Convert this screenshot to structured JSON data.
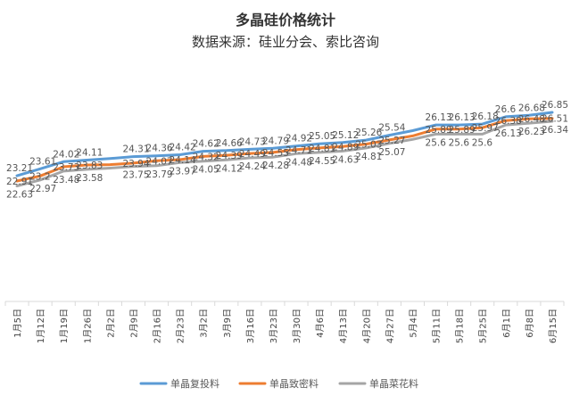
{
  "chart_data": {
    "type": "line",
    "title": "多晶硅价格统计",
    "subtitle": "数据来源：硅业分会、索比咨询",
    "categories": [
      "1月5日",
      "1月12日",
      "1月19日",
      "1月26日",
      "2月2日",
      "2月9日",
      "2月16日",
      "2月23日",
      "3月2日",
      "3月9日",
      "3月16日",
      "3月23日",
      "3月30日",
      "4月6日",
      "4月13日",
      "4月20日",
      "4月27日",
      "5月4日",
      "5月11日",
      "5月18日",
      "5月25日",
      "6月1日",
      "6月8日",
      "6月15日"
    ],
    "series": [
      {
        "name": "单晶复投料",
        "color": "#5B9BD5",
        "values": [
          23.21,
          23.61,
          24.02,
          24.11,
          24.2,
          24.31,
          24.36,
          24.42,
          24.62,
          24.66,
          24.73,
          24.79,
          24.92,
          25.05,
          25.12,
          25.26,
          25.54,
          25.8,
          26.13,
          26.13,
          26.18,
          26.6,
          26.68,
          26.85
        ],
        "labels": [
          "23.21",
          "23.61",
          "24.02",
          "24.11",
          "",
          "24.31",
          "24.36",
          "24.42",
          "24.62",
          "24.66",
          "24.73",
          "24.79",
          "24.92",
          "25.05",
          "25.12",
          "25.26",
          "25.54",
          "",
          "26.13",
          "26.13",
          "26.18",
          "26.6",
          "26.68",
          "26.85"
        ]
      },
      {
        "name": "单晶致密料",
        "color": "#ED7D31",
        "values": [
          22.91,
          23.2,
          23.73,
          23.83,
          23.85,
          23.94,
          24.07,
          24.14,
          24.32,
          24.39,
          24.49,
          24.55,
          24.71,
          24.81,
          24.89,
          25.03,
          25.27,
          25.5,
          25.89,
          25.89,
          25.97,
          26.38,
          26.48,
          26.51
        ],
        "labels": [
          "22.91",
          "23.2",
          "23.73",
          "23.83",
          "",
          "23.94",
          "24.07",
          "24.14",
          "24.32",
          "24.39",
          "24.49",
          "24.55",
          "24.71",
          "24.81",
          "24.89",
          "25.03",
          "25.27",
          "",
          "25.89",
          "25.89",
          "25.97",
          "26.38",
          "26.48",
          "26.51"
        ]
      },
      {
        "name": "单晶菜花料",
        "color": "#A5A5A5",
        "values": [
          22.63,
          22.97,
          23.48,
          23.58,
          23.65,
          23.75,
          23.79,
          23.97,
          24.05,
          24.12,
          24.24,
          24.28,
          24.48,
          24.55,
          24.63,
          24.81,
          25.07,
          25.3,
          25.6,
          25.6,
          25.6,
          26.13,
          26.23,
          26.34
        ],
        "labels": [
          "22.63",
          "22.97",
          "23.48",
          "23.58",
          "",
          "23.75",
          "23.79",
          "23.97",
          "24.05",
          "24.12",
          "24.24",
          "24.28",
          "24.48",
          "24.55",
          "24.63",
          "24.81",
          "25.07",
          "",
          "25.6",
          "25.6",
          "25.6",
          "26.13",
          "26.23",
          "26.34"
        ]
      }
    ],
    "ylim": [
      16,
      29
    ],
    "grid": false,
    "legend_position": "bottom"
  }
}
